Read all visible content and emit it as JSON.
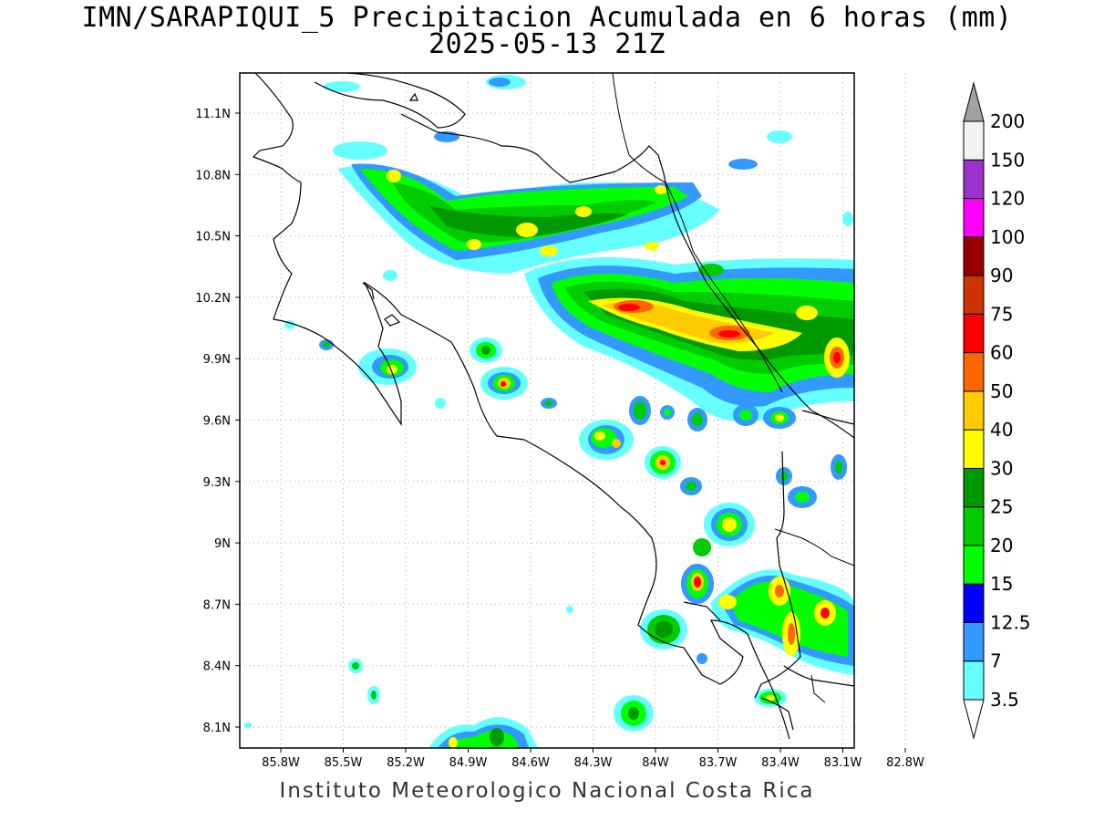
{
  "header": {
    "title_line1": "IMN/SARAPIQUI_5 Precipitacion Acumulada en 6 horas (mm)",
    "title_line2": "2025-05-13 21Z"
  },
  "footer": {
    "credit": "Instituto Meteorologico Nacional Costa Rica"
  },
  "map_axes": {
    "lon_ticks": [
      "85.8W",
      "85.5W",
      "85.2W",
      "84.9W",
      "84.6W",
      "84.3W",
      "84W",
      "83.7W",
      "83.4W",
      "83.1W",
      "82.8W"
    ],
    "lat_ticks": [
      "11.1N",
      "10.8N",
      "10.5N",
      "10.2N",
      "9.9N",
      "9.6N",
      "9.3N",
      "9N",
      "8.7N",
      "8.4N",
      "8.1N"
    ],
    "grid": "dotted"
  },
  "colorbar": {
    "levels": [
      {
        "label": "3.5",
        "color": "#66ffff"
      },
      {
        "label": "7",
        "color": "#3399ff"
      },
      {
        "label": "12.5",
        "color": "#0000ff"
      },
      {
        "label": "15",
        "color": "#00ff00"
      },
      {
        "label": "20",
        "color": "#00cc00"
      },
      {
        "label": "25",
        "color": "#009900"
      },
      {
        "label": "30",
        "color": "#ffff00"
      },
      {
        "label": "40",
        "color": "#ffcc00"
      },
      {
        "label": "50",
        "color": "#ff6600"
      },
      {
        "label": "60",
        "color": "#ff0000"
      },
      {
        "label": "75",
        "color": "#cc3300"
      },
      {
        "label": "90",
        "color": "#990000"
      },
      {
        "label": "100",
        "color": "#ff00ff"
      },
      {
        "label": "120",
        "color": "#9933cc"
      },
      {
        "label": "150",
        "color": "#f2f2f2"
      },
      {
        "label": "200",
        "color": "#a0a0a0"
      }
    ]
  }
}
